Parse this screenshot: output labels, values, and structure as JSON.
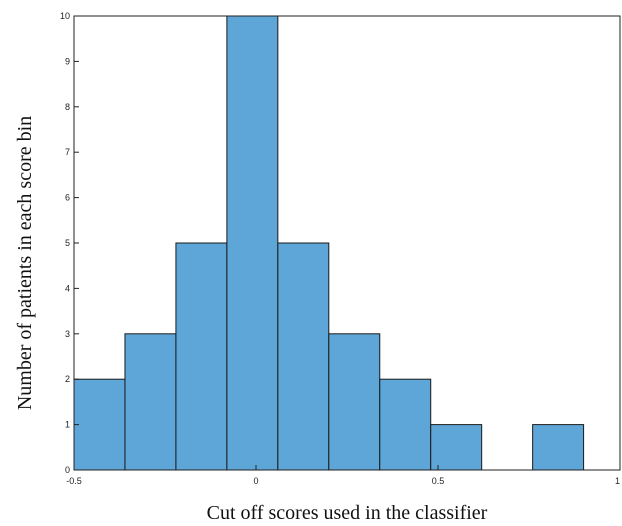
{
  "chart_data": {
    "type": "bar",
    "subtype": "histogram",
    "title": "",
    "xlabel": "Cut off scores used in the classifier",
    "ylabel": "Number of patients in each score bin",
    "xlim": [
      -0.5,
      1
    ],
    "ylim": [
      0,
      10
    ],
    "xticks": [
      "-0.5",
      "0",
      "0.5",
      "1"
    ],
    "yticks": [
      "0",
      "1",
      "2",
      "3",
      "4",
      "5",
      "6",
      "7",
      "8",
      "9",
      "10"
    ],
    "bins": [
      {
        "x0": -0.5,
        "x1": -0.36,
        "value": 2
      },
      {
        "x0": -0.36,
        "x1": -0.22,
        "value": 3
      },
      {
        "x0": -0.22,
        "x1": -0.08,
        "value": 5
      },
      {
        "x0": -0.08,
        "x1": 0.06,
        "value": 10
      },
      {
        "x0": 0.06,
        "x1": 0.2,
        "value": 5
      },
      {
        "x0": 0.2,
        "x1": 0.34,
        "value": 3
      },
      {
        "x0": 0.34,
        "x1": 0.48,
        "value": 2
      },
      {
        "x0": 0.48,
        "x1": 0.62,
        "value": 1
      },
      {
        "x0": 0.62,
        "x1": 0.76,
        "value": 0
      },
      {
        "x0": 0.76,
        "x1": 0.9,
        "value": 1
      }
    ],
    "bar_color": "#5ea5d8",
    "edge_color": "#1a1a1a",
    "grid": false
  }
}
